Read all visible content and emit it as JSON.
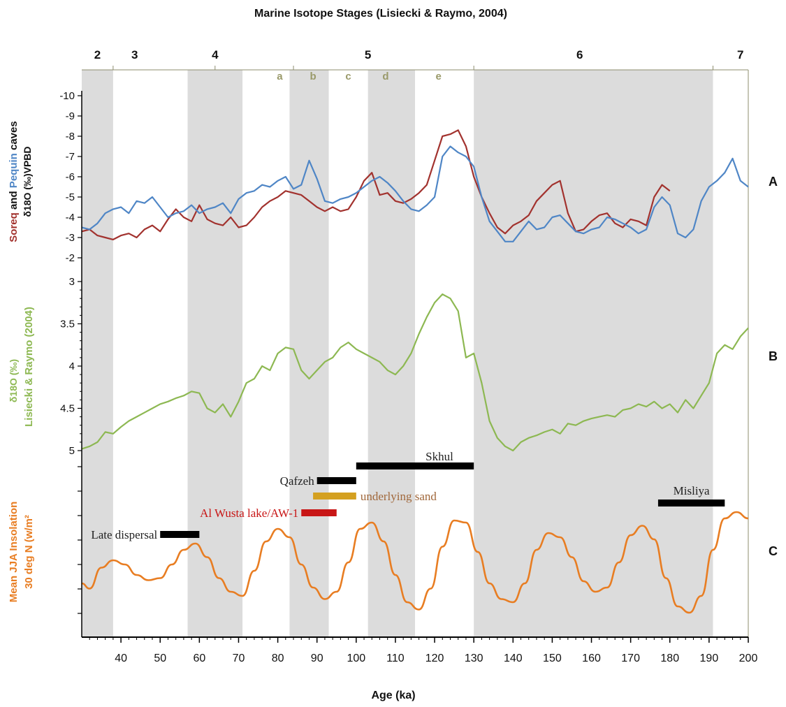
{
  "chart_data": {
    "type": "line",
    "title": "Marine Isotope Stages (Lisiecki & Raymo, 2004)",
    "xlabel": "Age (ka)",
    "xlim": [
      30,
      200
    ],
    "x_ticks": [
      40,
      50,
      60,
      70,
      80,
      90,
      100,
      110,
      120,
      130,
      140,
      150,
      160,
      170,
      180,
      190,
      200
    ],
    "stages": [
      {
        "label": "2",
        "center": 34
      },
      {
        "label": "3",
        "center": 43.5
      },
      {
        "label": "4",
        "center": 64
      },
      {
        "label": "5",
        "center": 103
      },
      {
        "label": "6",
        "center": 157
      },
      {
        "label": "7",
        "center": 198
      }
    ],
    "stage_boundaries": [
      38,
      64,
      84,
      130,
      191
    ],
    "substages": [
      {
        "label": "a",
        "center": 80.5
      },
      {
        "label": "b",
        "center": 89
      },
      {
        "label": "c",
        "center": 98
      },
      {
        "label": "d",
        "center": 107.5
      },
      {
        "label": "e",
        "center": 121
      },
      {
        "label": "",
        "center": 0
      }
    ],
    "shaded_bands": [
      [
        30,
        38
      ],
      [
        57,
        71
      ],
      [
        83,
        93
      ],
      [
        103,
        115
      ],
      [
        130,
        191
      ]
    ],
    "panels": [
      {
        "id": "A",
        "ylabel_parts": [
          "Soreq",
          " and ",
          "Pequin",
          " caves"
        ],
        "ylabel2": "δ18O (‰)VPBD",
        "ylim": [
          -2,
          -10
        ],
        "y_ticks": [
          -10,
          -9,
          -8,
          -7,
          -6,
          -5,
          -4,
          -3,
          -2
        ],
        "series": [
          {
            "name": "Soreq",
            "color": "#a2322e",
            "x": [
              30,
              32,
              34,
              36,
              38,
              40,
              42,
              44,
              46,
              48,
              50,
              52,
              54,
              56,
              58,
              60,
              62,
              64,
              66,
              68,
              70,
              72,
              74,
              76,
              78,
              80,
              82,
              84,
              86,
              88,
              90,
              92,
              94,
              96,
              98,
              100,
              102,
              104,
              106,
              108,
              110,
              112,
              114,
              116,
              118,
              120,
              122,
              124,
              126,
              128,
              130,
              132,
              134,
              136,
              138,
              140,
              142,
              144,
              146,
              148,
              150,
              152,
              154,
              156,
              158,
              160,
              162,
              164,
              166,
              168,
              170,
              172,
              174,
              176,
              178,
              180
            ],
            "y": [
              -3.3,
              -3.4,
              -3.1,
              -3.0,
              -2.9,
              -3.1,
              -3.2,
              -3.0,
              -3.4,
              -3.6,
              -3.3,
              -3.9,
              -4.4,
              -4.0,
              -3.8,
              -4.6,
              -3.9,
              -3.7,
              -3.6,
              -4.0,
              -3.5,
              -3.6,
              -4.0,
              -4.5,
              -4.8,
              -5.0,
              -5.3,
              -5.2,
              -5.1,
              -4.8,
              -4.5,
              -4.3,
              -4.5,
              -4.3,
              -4.4,
              -5.0,
              -5.8,
              -6.2,
              -5.1,
              -5.2,
              -4.8,
              -4.7,
              -4.9,
              -5.2,
              -5.6,
              -6.8,
              -8.0,
              -8.1,
              -8.3,
              -7.5,
              -6.0,
              -5.0,
              -4.2,
              -3.5,
              -3.2,
              -3.6,
              -3.8,
              -4.1,
              -4.8,
              -5.2,
              -5.6,
              -5.8,
              -4.2,
              -3.3,
              -3.4,
              -3.8,
              -4.1,
              -4.2,
              -3.7,
              -3.5,
              -3.9,
              -3.8,
              -3.6,
              -5.0,
              -5.6,
              -5.3
            ]
          },
          {
            "name": "Pequin",
            "color": "#4f86c6",
            "x": [
              30,
              32,
              34,
              36,
              38,
              40,
              42,
              44,
              46,
              48,
              50,
              52,
              54,
              56,
              58,
              60,
              62,
              64,
              66,
              68,
              70,
              72,
              74,
              76,
              78,
              80,
              82,
              84,
              86,
              88,
              90,
              92,
              94,
              96,
              98,
              100,
              102,
              104,
              106,
              108,
              110,
              112,
              114,
              116,
              118,
              120,
              122,
              124,
              126,
              128,
              130,
              132,
              134,
              136,
              138,
              140,
              142,
              144,
              146,
              148,
              150,
              152,
              154,
              156,
              158,
              160,
              162,
              164,
              166,
              168,
              170,
              172,
              174,
              176,
              178,
              180,
              182,
              184,
              186,
              188,
              190,
              192,
              194,
              196,
              198,
              200
            ],
            "y": [
              -3.5,
              -3.4,
              -3.7,
              -4.2,
              -4.4,
              -4.5,
              -4.2,
              -4.8,
              -4.7,
              -5.0,
              -4.5,
              -4.0,
              -4.2,
              -4.3,
              -4.6,
              -4.2,
              -4.4,
              -4.5,
              -4.7,
              -4.2,
              -4.9,
              -5.2,
              -5.3,
              -5.6,
              -5.5,
              -5.8,
              -6.0,
              -5.4,
              -5.6,
              -6.8,
              -5.9,
              -4.8,
              -4.7,
              -4.9,
              -5.0,
              -5.2,
              -5.5,
              -5.8,
              -6.0,
              -5.7,
              -5.3,
              -4.8,
              -4.4,
              -4.3,
              -4.6,
              -5.0,
              -7.0,
              -7.5,
              -7.2,
              -7.0,
              -6.5,
              -5.0,
              -3.8,
              -3.3,
              -2.8,
              -2.8,
              -3.3,
              -3.8,
              -3.4,
              -3.5,
              -4.0,
              -4.1,
              -3.7,
              -3.3,
              -3.2,
              -3.4,
              -3.5,
              -4.0,
              -3.9,
              -3.7,
              -3.5,
              -3.2,
              -3.4,
              -4.5,
              -5.0,
              -4.6,
              -3.2,
              -3.0,
              -3.4,
              -4.8,
              -5.5,
              -5.8,
              -6.2,
              -6.9,
              -5.8,
              -5.5
            ]
          }
        ]
      },
      {
        "id": "B",
        "ylabel": "δ18O (‰)",
        "ylabel2": "Lisiecki & Raymo (2004)",
        "ylim": [
          5,
          3
        ],
        "y_ticks": [
          3,
          3.5,
          4,
          4.5,
          5
        ],
        "series": [
          {
            "name": "",
            "color": "#8db852",
            "x": [
              30,
              32,
              34,
              36,
              38,
              40,
              42,
              44,
              46,
              48,
              50,
              52,
              54,
              56,
              58,
              60,
              62,
              64,
              66,
              68,
              70,
              72,
              74,
              76,
              78,
              80,
              82,
              84,
              86,
              88,
              90,
              92,
              94,
              96,
              98,
              100,
              102,
              104,
              106,
              108,
              110,
              112,
              114,
              116,
              118,
              120,
              122,
              124,
              126,
              128,
              130,
              132,
              134,
              136,
              138,
              140,
              142,
              144,
              146,
              148,
              150,
              152,
              154,
              156,
              158,
              160,
              162,
              164,
              166,
              168,
              170,
              172,
              174,
              176,
              178,
              180,
              182,
              184,
              186,
              188,
              190,
              192,
              194,
              196,
              198,
              200
            ],
            "y": [
              4.98,
              4.95,
              4.9,
              4.78,
              4.8,
              4.72,
              4.65,
              4.6,
              4.55,
              4.5,
              4.45,
              4.42,
              4.38,
              4.35,
              4.3,
              4.32,
              4.5,
              4.55,
              4.45,
              4.6,
              4.42,
              4.2,
              4.15,
              4.0,
              4.05,
              3.85,
              3.78,
              3.8,
              4.05,
              4.15,
              4.05,
              3.95,
              3.9,
              3.78,
              3.72,
              3.8,
              3.85,
              3.9,
              3.95,
              4.05,
              4.1,
              4.0,
              3.85,
              3.62,
              3.42,
              3.25,
              3.15,
              3.2,
              3.35,
              3.9,
              3.85,
              4.2,
              4.65,
              4.85,
              4.95,
              5.0,
              4.9,
              4.85,
              4.82,
              4.78,
              4.75,
              4.8,
              4.68,
              4.7,
              4.65,
              4.62,
              4.6,
              4.58,
              4.6,
              4.52,
              4.5,
              4.45,
              4.48,
              4.42,
              4.5,
              4.45,
              4.55,
              4.4,
              4.5,
              4.35,
              4.2,
              3.85,
              3.75,
              3.8,
              3.65,
              3.55
            ]
          }
        ]
      },
      {
        "id": "C",
        "ylabel": "Mean JJA Insolation",
        "ylabel2": "30 deg N (w/m²",
        "series": [
          {
            "name": "",
            "color": "#e87d22",
            "x": [
              30,
              32,
              35,
              38,
              41,
              44,
              47,
              50,
              53,
              56,
              59,
              62,
              65,
              68,
              71,
              74,
              77,
              80,
              83,
              86,
              89,
              92,
              95,
              98,
              101,
              104,
              107,
              110,
              113,
              116,
              119,
              122,
              125,
              128,
              131,
              134,
              137,
              140,
              143,
              146,
              149,
              152,
              155,
              158,
              161,
              164,
              167,
              170,
              173,
              176,
              179,
              182,
              185,
              188,
              191,
              194,
              197,
              200
            ],
            "y": [
              0.3,
              0.25,
              0.45,
              0.52,
              0.48,
              0.38,
              0.33,
              0.35,
              0.48,
              0.62,
              0.68,
              0.55,
              0.35,
              0.22,
              0.18,
              0.42,
              0.7,
              0.82,
              0.74,
              0.48,
              0.26,
              0.15,
              0.22,
              0.5,
              0.82,
              0.88,
              0.7,
              0.38,
              0.12,
              0.05,
              0.25,
              0.65,
              0.9,
              0.88,
              0.6,
              0.3,
              0.15,
              0.12,
              0.3,
              0.62,
              0.78,
              0.74,
              0.55,
              0.32,
              0.22,
              0.26,
              0.5,
              0.76,
              0.85,
              0.72,
              0.35,
              0.08,
              0.02,
              0.18,
              0.62,
              0.92,
              0.98,
              0.92
            ]
          }
        ]
      }
    ],
    "bars": [
      {
        "label": "Skhul",
        "start": 100,
        "end": 130,
        "color": "#000000",
        "label_color": "#222222"
      },
      {
        "label": "Qafzeh",
        "start": 90,
        "end": 100,
        "color": "#000000",
        "label_color": "#222222"
      },
      {
        "label": "underlying sand",
        "start": 89,
        "end": 100,
        "color": "#d4a020",
        "label_color": "#a0673a"
      },
      {
        "label": "Al Wusta lake/AW-1",
        "start": 86,
        "end": 95,
        "color": "#c81616",
        "label_color": "#c81616"
      },
      {
        "label": "Late dispersal",
        "start": 50,
        "end": 60,
        "color": "#000000",
        "label_color": "#222222"
      },
      {
        "label": "Misliya",
        "start": 177,
        "end": 194,
        "color": "#000000",
        "label_color": "#222222"
      }
    ]
  }
}
